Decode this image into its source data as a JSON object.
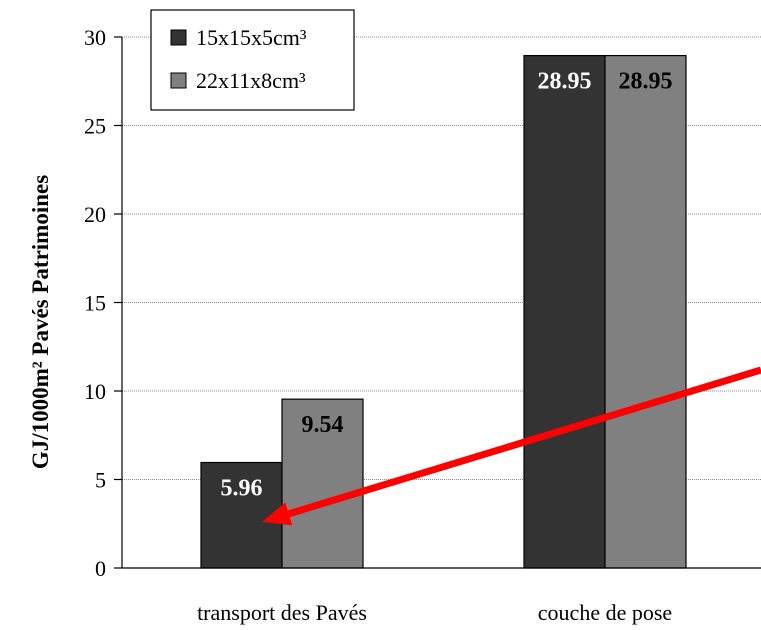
{
  "chart_data": {
    "type": "bar",
    "categories": [
      "transport des Pavés",
      "couche de pose"
    ],
    "series": [
      {
        "name": "15x15x5cm³",
        "values": [
          5.96,
          28.95
        ],
        "color": "#333333",
        "label_color": "#ffffff"
      },
      {
        "name": "22x11x8cm³",
        "values": [
          9.54,
          28.95
        ],
        "color": "#808080",
        "label_color": "#000000"
      }
    ],
    "data_labels": [
      [
        "5.96",
        "28.95"
      ],
      [
        "9.54",
        "28.95"
      ]
    ],
    "title": "",
    "xlabel": "",
    "ylabel": "GJ/1000m² Pavés Patrimoines",
    "ylim": [
      0,
      30
    ],
    "yticks": [
      0,
      5,
      10,
      15,
      20,
      25,
      30
    ],
    "grid": true,
    "legend_position": "top-left",
    "annotation": {
      "type": "arrow",
      "color": "#ff0000",
      "direction": "down-left",
      "target": "transport des Pavés / 15x15x5cm³"
    }
  }
}
